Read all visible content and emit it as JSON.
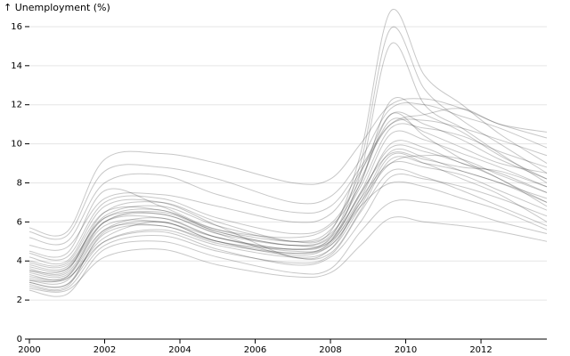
{
  "chart_data": {
    "type": "line",
    "title": "",
    "xlabel": "",
    "ylabel": "↑ Unemployment (%)",
    "xlim": [
      2000,
      2013.75
    ],
    "ylim": [
      0,
      17
    ],
    "grid": "horizontal",
    "legend": "none",
    "line_color": "#000000",
    "x_ticks": [
      "2000",
      "2002",
      "2004",
      "2006",
      "2008",
      "2010",
      "2012"
    ],
    "y_ticks": [
      "0",
      "2",
      "4",
      "6",
      "8",
      "10",
      "12",
      "14",
      "16"
    ],
    "x": [
      2000,
      2001,
      2002,
      2003.5,
      2005,
      2007,
      2008,
      2008.8,
      2009.6,
      2010.5,
      2011.5,
      2012.5,
      2013.75
    ],
    "series": [
      {
        "values": [
          3.5,
          3.6,
          6.2,
          6.6,
          5.5,
          4.8,
          5.2,
          7.5,
          10.5,
          10.2,
          9.5,
          8.8,
          7.8
        ]
      },
      {
        "values": [
          2.8,
          2.7,
          5.5,
          6.0,
          5.0,
          4.3,
          4.8,
          7.0,
          9.6,
          9.3,
          8.6,
          8.0,
          7.0
        ]
      },
      {
        "values": [
          4.5,
          4.4,
          7.6,
          6.8,
          5.6,
          5.0,
          5.6,
          8.5,
          11.5,
          11.0,
          10.2,
          9.2,
          8.2
        ]
      },
      {
        "values": [
          3.0,
          3.1,
          5.0,
          5.5,
          4.6,
          3.8,
          4.2,
          6.0,
          8.3,
          8.2,
          7.8,
          7.2,
          6.3
        ]
      },
      {
        "values": [
          5.7,
          5.5,
          9.2,
          9.5,
          9.0,
          8.0,
          8.2,
          10.0,
          12.0,
          12.3,
          11.8,
          11.0,
          10.3
        ]
      },
      {
        "values": [
          3.6,
          3.5,
          6.5,
          7.0,
          6.0,
          5.0,
          5.5,
          9.5,
          16.8,
          13.5,
          12.0,
          10.5,
          9.0
        ]
      },
      {
        "values": [
          3.3,
          3.2,
          6.0,
          6.5,
          5.5,
          4.8,
          5.2,
          9.0,
          15.9,
          12.8,
          11.2,
          10.0,
          8.5
        ]
      },
      {
        "values": [
          3.0,
          3.0,
          5.6,
          6.2,
          5.2,
          4.5,
          5.0,
          8.5,
          15.1,
          12.0,
          10.8,
          9.5,
          8.0
        ]
      },
      {
        "values": [
          2.5,
          2.3,
          4.6,
          5.0,
          4.2,
          3.4,
          3.6,
          5.5,
          7.0,
          7.0,
          6.6,
          6.0,
          5.4
        ]
      },
      {
        "values": [
          4.2,
          4.0,
          6.8,
          7.0,
          5.8,
          4.2,
          4.6,
          7.2,
          10.0,
          9.8,
          9.0,
          8.5,
          7.5
        ]
      },
      {
        "values": [
          5.2,
          5.0,
          8.0,
          8.4,
          7.4,
          6.5,
          6.8,
          8.8,
          11.0,
          11.2,
          10.8,
          10.2,
          9.4
        ]
      },
      {
        "values": [
          3.8,
          3.7,
          6.3,
          6.8,
          5.8,
          5.0,
          5.4,
          7.8,
          10.8,
          10.8,
          10.4,
          9.6,
          8.8
        ]
      },
      {
        "values": [
          2.9,
          2.8,
          5.4,
          5.8,
          4.9,
          4.4,
          4.9,
          7.2,
          9.0,
          8.8,
          8.4,
          7.6,
          6.6
        ]
      },
      {
        "values": [
          3.4,
          3.3,
          5.8,
          6.0,
          5.2,
          4.6,
          5.0,
          7.5,
          9.5,
          9.2,
          8.8,
          8.6,
          7.8
        ]
      },
      {
        "values": [
          4.8,
          4.7,
          7.2,
          7.4,
          6.8,
          6.0,
          6.4,
          8.6,
          11.0,
          11.5,
          11.8,
          11.0,
          10.6
        ]
      },
      {
        "values": [
          2.6,
          2.5,
          4.2,
          4.6,
          3.8,
          3.2,
          3.4,
          4.8,
          6.2,
          6.0,
          5.8,
          5.5,
          5.0
        ]
      },
      {
        "values": [
          3.1,
          3.1,
          5.2,
          6.0,
          5.0,
          4.6,
          5.0,
          7.0,
          9.0,
          9.4,
          9.2,
          8.4,
          7.5
        ]
      },
      {
        "values": [
          4.0,
          3.9,
          6.5,
          6.6,
          5.6,
          5.2,
          5.8,
          8.0,
          12.2,
          11.5,
          10.6,
          9.4,
          8.2
        ]
      },
      {
        "values": [
          3.7,
          3.6,
          6.0,
          6.2,
          5.2,
          4.6,
          5.1,
          7.4,
          9.8,
          9.6,
          9.0,
          8.2,
          6.8
        ]
      },
      {
        "values": [
          2.7,
          2.6,
          4.8,
          5.3,
          4.5,
          3.9,
          4.3,
          6.5,
          8.6,
          8.3,
          7.6,
          6.8,
          5.8
        ]
      },
      {
        "values": [
          5.5,
          5.3,
          8.6,
          8.8,
          8.2,
          7.0,
          7.3,
          9.2,
          11.8,
          12.0,
          11.4,
          10.8,
          9.8
        ]
      },
      {
        "values": [
          3.2,
          3.2,
          5.6,
          5.8,
          5.0,
          4.4,
          4.8,
          6.8,
          8.0,
          7.8,
          7.2,
          6.6,
          5.6
        ]
      },
      {
        "values": [
          4.4,
          4.2,
          7.0,
          7.2,
          6.2,
          5.4,
          5.9,
          8.2,
          11.2,
          10.6,
          9.8,
          9.0,
          8.5
        ]
      },
      {
        "values": [
          3.9,
          3.8,
          6.2,
          6.4,
          5.4,
          4.2,
          4.4,
          6.6,
          9.2,
          9.0,
          8.6,
          8.0,
          7.2
        ]
      },
      {
        "values": [
          3.5,
          3.4,
          6.0,
          6.4,
          5.4,
          4.8,
          5.3,
          8.0,
          11.5,
          10.4,
          9.2,
          8.2,
          7.0
        ]
      },
      {
        "values": [
          2.9,
          2.8,
          5.0,
          5.6,
          4.8,
          4.2,
          4.6,
          6.8,
          9.4,
          9.0,
          8.2,
          7.4,
          6.0
        ]
      }
    ]
  }
}
